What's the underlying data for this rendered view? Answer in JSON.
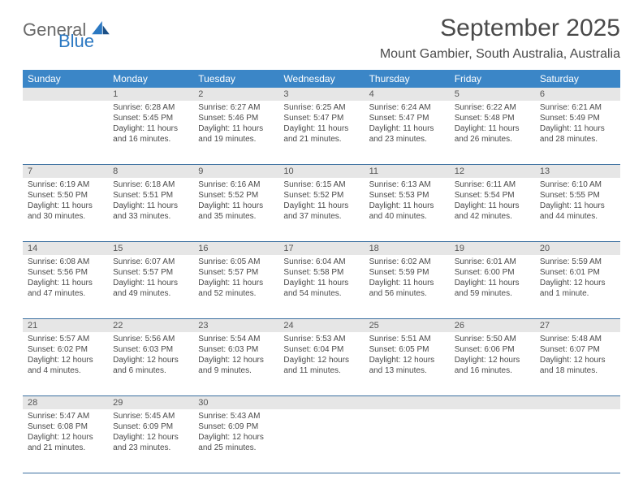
{
  "logo": {
    "text1": "General",
    "text2": "Blue"
  },
  "title": "September 2025",
  "subtitle": "Mount Gambier, South Australia, Australia",
  "colors": {
    "header_bg": "#3b86c7",
    "header_text": "#ffffff",
    "daynum_bg": "#e6e6e6",
    "rule": "#3b6fa0",
    "brand_blue": "#2b78c2",
    "brand_gray": "#6a6a6a",
    "body_text": "#4a4a4a"
  },
  "day_names": [
    "Sunday",
    "Monday",
    "Tuesday",
    "Wednesday",
    "Thursday",
    "Friday",
    "Saturday"
  ],
  "weeks": [
    [
      {
        "num": "",
        "sunrise": "",
        "sunset": "",
        "daylight1": "",
        "daylight2": ""
      },
      {
        "num": "1",
        "sunrise": "Sunrise: 6:28 AM",
        "sunset": "Sunset: 5:45 PM",
        "daylight1": "Daylight: 11 hours",
        "daylight2": "and 16 minutes."
      },
      {
        "num": "2",
        "sunrise": "Sunrise: 6:27 AM",
        "sunset": "Sunset: 5:46 PM",
        "daylight1": "Daylight: 11 hours",
        "daylight2": "and 19 minutes."
      },
      {
        "num": "3",
        "sunrise": "Sunrise: 6:25 AM",
        "sunset": "Sunset: 5:47 PM",
        "daylight1": "Daylight: 11 hours",
        "daylight2": "and 21 minutes."
      },
      {
        "num": "4",
        "sunrise": "Sunrise: 6:24 AM",
        "sunset": "Sunset: 5:47 PM",
        "daylight1": "Daylight: 11 hours",
        "daylight2": "and 23 minutes."
      },
      {
        "num": "5",
        "sunrise": "Sunrise: 6:22 AM",
        "sunset": "Sunset: 5:48 PM",
        "daylight1": "Daylight: 11 hours",
        "daylight2": "and 26 minutes."
      },
      {
        "num": "6",
        "sunrise": "Sunrise: 6:21 AM",
        "sunset": "Sunset: 5:49 PM",
        "daylight1": "Daylight: 11 hours",
        "daylight2": "and 28 minutes."
      }
    ],
    [
      {
        "num": "7",
        "sunrise": "Sunrise: 6:19 AM",
        "sunset": "Sunset: 5:50 PM",
        "daylight1": "Daylight: 11 hours",
        "daylight2": "and 30 minutes."
      },
      {
        "num": "8",
        "sunrise": "Sunrise: 6:18 AM",
        "sunset": "Sunset: 5:51 PM",
        "daylight1": "Daylight: 11 hours",
        "daylight2": "and 33 minutes."
      },
      {
        "num": "9",
        "sunrise": "Sunrise: 6:16 AM",
        "sunset": "Sunset: 5:52 PM",
        "daylight1": "Daylight: 11 hours",
        "daylight2": "and 35 minutes."
      },
      {
        "num": "10",
        "sunrise": "Sunrise: 6:15 AM",
        "sunset": "Sunset: 5:52 PM",
        "daylight1": "Daylight: 11 hours",
        "daylight2": "and 37 minutes."
      },
      {
        "num": "11",
        "sunrise": "Sunrise: 6:13 AM",
        "sunset": "Sunset: 5:53 PM",
        "daylight1": "Daylight: 11 hours",
        "daylight2": "and 40 minutes."
      },
      {
        "num": "12",
        "sunrise": "Sunrise: 6:11 AM",
        "sunset": "Sunset: 5:54 PM",
        "daylight1": "Daylight: 11 hours",
        "daylight2": "and 42 minutes."
      },
      {
        "num": "13",
        "sunrise": "Sunrise: 6:10 AM",
        "sunset": "Sunset: 5:55 PM",
        "daylight1": "Daylight: 11 hours",
        "daylight2": "and 44 minutes."
      }
    ],
    [
      {
        "num": "14",
        "sunrise": "Sunrise: 6:08 AM",
        "sunset": "Sunset: 5:56 PM",
        "daylight1": "Daylight: 11 hours",
        "daylight2": "and 47 minutes."
      },
      {
        "num": "15",
        "sunrise": "Sunrise: 6:07 AM",
        "sunset": "Sunset: 5:57 PM",
        "daylight1": "Daylight: 11 hours",
        "daylight2": "and 49 minutes."
      },
      {
        "num": "16",
        "sunrise": "Sunrise: 6:05 AM",
        "sunset": "Sunset: 5:57 PM",
        "daylight1": "Daylight: 11 hours",
        "daylight2": "and 52 minutes."
      },
      {
        "num": "17",
        "sunrise": "Sunrise: 6:04 AM",
        "sunset": "Sunset: 5:58 PM",
        "daylight1": "Daylight: 11 hours",
        "daylight2": "and 54 minutes."
      },
      {
        "num": "18",
        "sunrise": "Sunrise: 6:02 AM",
        "sunset": "Sunset: 5:59 PM",
        "daylight1": "Daylight: 11 hours",
        "daylight2": "and 56 minutes."
      },
      {
        "num": "19",
        "sunrise": "Sunrise: 6:01 AM",
        "sunset": "Sunset: 6:00 PM",
        "daylight1": "Daylight: 11 hours",
        "daylight2": "and 59 minutes."
      },
      {
        "num": "20",
        "sunrise": "Sunrise: 5:59 AM",
        "sunset": "Sunset: 6:01 PM",
        "daylight1": "Daylight: 12 hours",
        "daylight2": "and 1 minute."
      }
    ],
    [
      {
        "num": "21",
        "sunrise": "Sunrise: 5:57 AM",
        "sunset": "Sunset: 6:02 PM",
        "daylight1": "Daylight: 12 hours",
        "daylight2": "and 4 minutes."
      },
      {
        "num": "22",
        "sunrise": "Sunrise: 5:56 AM",
        "sunset": "Sunset: 6:03 PM",
        "daylight1": "Daylight: 12 hours",
        "daylight2": "and 6 minutes."
      },
      {
        "num": "23",
        "sunrise": "Sunrise: 5:54 AM",
        "sunset": "Sunset: 6:03 PM",
        "daylight1": "Daylight: 12 hours",
        "daylight2": "and 9 minutes."
      },
      {
        "num": "24",
        "sunrise": "Sunrise: 5:53 AM",
        "sunset": "Sunset: 6:04 PM",
        "daylight1": "Daylight: 12 hours",
        "daylight2": "and 11 minutes."
      },
      {
        "num": "25",
        "sunrise": "Sunrise: 5:51 AM",
        "sunset": "Sunset: 6:05 PM",
        "daylight1": "Daylight: 12 hours",
        "daylight2": "and 13 minutes."
      },
      {
        "num": "26",
        "sunrise": "Sunrise: 5:50 AM",
        "sunset": "Sunset: 6:06 PM",
        "daylight1": "Daylight: 12 hours",
        "daylight2": "and 16 minutes."
      },
      {
        "num": "27",
        "sunrise": "Sunrise: 5:48 AM",
        "sunset": "Sunset: 6:07 PM",
        "daylight1": "Daylight: 12 hours",
        "daylight2": "and 18 minutes."
      }
    ],
    [
      {
        "num": "28",
        "sunrise": "Sunrise: 5:47 AM",
        "sunset": "Sunset: 6:08 PM",
        "daylight1": "Daylight: 12 hours",
        "daylight2": "and 21 minutes."
      },
      {
        "num": "29",
        "sunrise": "Sunrise: 5:45 AM",
        "sunset": "Sunset: 6:09 PM",
        "daylight1": "Daylight: 12 hours",
        "daylight2": "and 23 minutes."
      },
      {
        "num": "30",
        "sunrise": "Sunrise: 5:43 AM",
        "sunset": "Sunset: 6:09 PM",
        "daylight1": "Daylight: 12 hours",
        "daylight2": "and 25 minutes."
      },
      {
        "num": "",
        "sunrise": "",
        "sunset": "",
        "daylight1": "",
        "daylight2": ""
      },
      {
        "num": "",
        "sunrise": "",
        "sunset": "",
        "daylight1": "",
        "daylight2": ""
      },
      {
        "num": "",
        "sunrise": "",
        "sunset": "",
        "daylight1": "",
        "daylight2": ""
      },
      {
        "num": "",
        "sunrise": "",
        "sunset": "",
        "daylight1": "",
        "daylight2": ""
      }
    ]
  ]
}
